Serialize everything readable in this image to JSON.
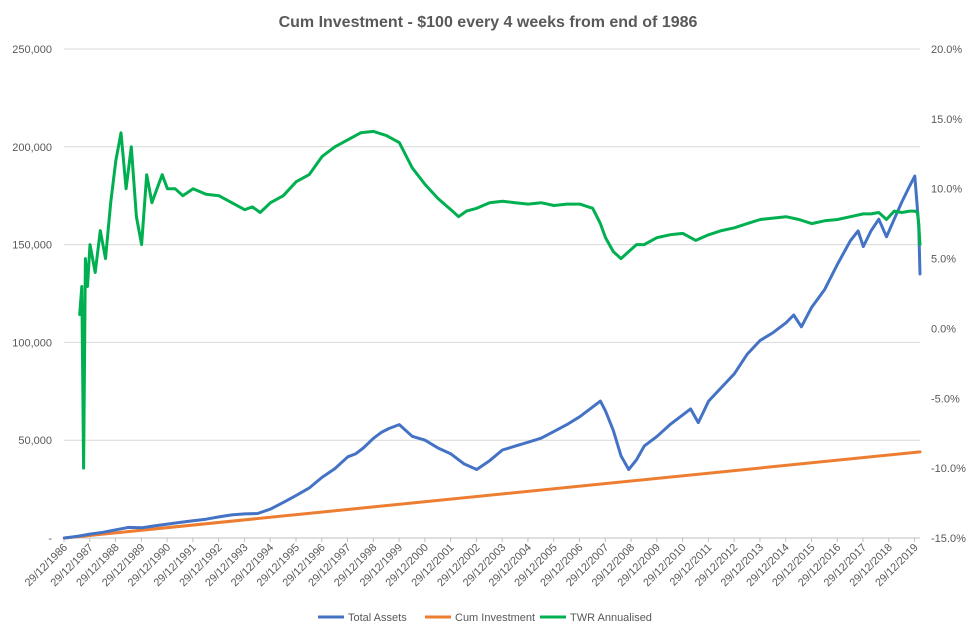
{
  "chart_data": {
    "type": "line",
    "title": "Cum Investment - $100 every 4 weeks from end of 1986",
    "y_left": {
      "range": [
        0,
        250000
      ],
      "ticks": [
        {
          "value": 0,
          "label": "-"
        },
        {
          "value": 50000,
          "label": "50,000"
        },
        {
          "value": 100000,
          "label": "100,000"
        },
        {
          "value": 150000,
          "label": "150,000"
        },
        {
          "value": 200000,
          "label": "200,000"
        },
        {
          "value": 250000,
          "label": "250,000"
        }
      ]
    },
    "y_right": {
      "range": [
        -15,
        20
      ],
      "ticks": [
        {
          "value": -15,
          "label": "-15.0%"
        },
        {
          "value": -10,
          "label": "-10.0%"
        },
        {
          "value": -5,
          "label": "-5.0%"
        },
        {
          "value": 0,
          "label": "0.0%"
        },
        {
          "value": 5,
          "label": "5.0%"
        },
        {
          "value": 10,
          "label": "10.0%"
        },
        {
          "value": 15,
          "label": "15.0%"
        },
        {
          "value": 20,
          "label": "20.0%"
        }
      ]
    },
    "x_range": [
      1986.99,
      2020.2
    ],
    "x_ticks": [
      "29/12/1986",
      "29/12/1987",
      "29/12/1988",
      "29/12/1989",
      "29/12/1990",
      "29/12/1991",
      "29/12/1992",
      "29/12/1993",
      "29/12/1994",
      "29/12/1995",
      "29/12/1996",
      "29/12/1997",
      "29/12/1998",
      "29/12/1999",
      "29/12/2000",
      "29/12/2001",
      "29/12/2002",
      "29/12/2003",
      "29/12/2004",
      "29/12/2005",
      "29/12/2006",
      "29/12/2007",
      "29/12/2008",
      "29/12/2009",
      "29/12/2010",
      "29/12/2011",
      "29/12/2012",
      "29/12/2013",
      "29/12/2014",
      "29/12/2015",
      "29/12/2016",
      "29/12/2017",
      "29/12/2018",
      "29/12/2019"
    ],
    "grid": true,
    "legend_position": "bottom",
    "series": [
      {
        "name": "Total Assets",
        "axis": "left",
        "color": "#4472C4",
        "x": [
          1987.0,
          1987.5,
          1988.0,
          1988.5,
          1989.0,
          1989.5,
          1990.0,
          1990.5,
          1991.0,
          1991.5,
          1992.0,
          1992.5,
          1993.0,
          1993.5,
          1994.0,
          1994.5,
          1995.0,
          1995.5,
          1996.0,
          1996.5,
          1997.0,
          1997.5,
          1998.0,
          1998.3,
          1998.6,
          1999.0,
          1999.3,
          1999.6,
          2000.0,
          2000.5,
          2001.0,
          2001.5,
          2002.0,
          2002.5,
          2003.0,
          2003.5,
          2004.0,
          2004.5,
          2005.0,
          2005.5,
          2006.0,
          2006.5,
          2007.0,
          2007.5,
          2007.8,
          2008.0,
          2008.3,
          2008.6,
          2008.9,
          2009.2,
          2009.5,
          2010.0,
          2010.5,
          2011.0,
          2011.3,
          2011.6,
          2012.0,
          2012.5,
          2013.0,
          2013.5,
          2014.0,
          2014.5,
          2015.0,
          2015.3,
          2015.6,
          2016.0,
          2016.5,
          2017.0,
          2017.5,
          2017.8,
          2018.0,
          2018.3,
          2018.6,
          2018.9,
          2019.2,
          2019.5,
          2019.8,
          2020.0,
          2020.15,
          2020.2
        ],
        "y": [
          0,
          800,
          2000,
          2900,
          4200,
          5400,
          5200,
          6200,
          7100,
          8000,
          8800,
          9600,
          10800,
          11800,
          12300,
          12500,
          14800,
          18200,
          21800,
          25500,
          31000,
          35500,
          41500,
          43000,
          46000,
          51000,
          54000,
          56000,
          58000,
          52000,
          50000,
          46000,
          43000,
          38000,
          35000,
          39500,
          45000,
          47000,
          49000,
          51000,
          54500,
          58000,
          62000,
          67000,
          70000,
          65000,
          55000,
          42000,
          35000,
          40000,
          47000,
          52000,
          58000,
          63000,
          66000,
          59000,
          70000,
          77000,
          84000,
          94000,
          101000,
          105000,
          110000,
          114000,
          108000,
          118000,
          127000,
          140000,
          152000,
          157000,
          149000,
          157000,
          163000,
          154000,
          163000,
          172000,
          180000,
          185000,
          160000,
          135000
        ]
      },
      {
        "name": "Cum Investment",
        "axis": "left",
        "color": "#ED7D31",
        "x": [
          1987.0,
          2020.2
        ],
        "y": [
          0,
          44000
        ]
      },
      {
        "name": "TWR Annualised",
        "axis": "right",
        "color": "#00B050",
        "x": [
          1987.6,
          1987.68,
          1987.75,
          1987.82,
          1987.9,
          1988.0,
          1988.2,
          1988.4,
          1988.6,
          1988.8,
          1989.0,
          1989.2,
          1989.4,
          1989.6,
          1989.8,
          1990.0,
          1990.2,
          1990.4,
          1990.6,
          1990.8,
          1991.0,
          1991.3,
          1991.6,
          1992.0,
          1992.5,
          1993.0,
          1993.5,
          1994.0,
          1994.3,
          1994.6,
          1995.0,
          1995.5,
          1996.0,
          1996.5,
          1997.0,
          1997.5,
          1998.0,
          1998.5,
          1999.0,
          1999.5,
          2000.0,
          2000.5,
          2001.0,
          2001.5,
          2002.0,
          2002.3,
          2002.6,
          2003.0,
          2003.5,
          2004.0,
          2004.5,
          2005.0,
          2005.5,
          2006.0,
          2006.5,
          2007.0,
          2007.5,
          2007.8,
          2008.0,
          2008.3,
          2008.6,
          2008.9,
          2009.2,
          2009.5,
          2010.0,
          2010.5,
          2011.0,
          2011.5,
          2012.0,
          2012.5,
          2013.0,
          2013.5,
          2014.0,
          2014.5,
          2015.0,
          2015.5,
          2016.0,
          2016.5,
          2017.0,
          2017.5,
          2018.0,
          2018.3,
          2018.6,
          2018.9,
          2019.2,
          2019.5,
          2019.8,
          2020.0,
          2020.1,
          2020.15,
          2020.2
        ],
        "y": [
          1,
          3,
          -10,
          5,
          3,
          6,
          4,
          7,
          5,
          9,
          12,
          14,
          10,
          13,
          8,
          6,
          11,
          9,
          10,
          11,
          10,
          10,
          9.5,
          10,
          9.6,
          9.5,
          9,
          8.5,
          8.7,
          8.3,
          9,
          9.5,
          10.5,
          11,
          12.3,
          13,
          13.5,
          14,
          14.1,
          13.8,
          13.3,
          11.5,
          10.3,
          9.3,
          8.5,
          8,
          8.4,
          8.6,
          9,
          9.1,
          9,
          8.9,
          9,
          8.8,
          8.9,
          8.9,
          8.6,
          7.5,
          6.5,
          5.5,
          5,
          5.5,
          6,
          6,
          6.5,
          6.7,
          6.8,
          6.3,
          6.7,
          7,
          7.2,
          7.5,
          7.8,
          7.9,
          8,
          7.8,
          7.5,
          7.7,
          7.8,
          8,
          8.2,
          8.2,
          8.3,
          7.8,
          8.4,
          8.3,
          8.4,
          8.4,
          8.3,
          7.5,
          6
        ]
      }
    ]
  }
}
